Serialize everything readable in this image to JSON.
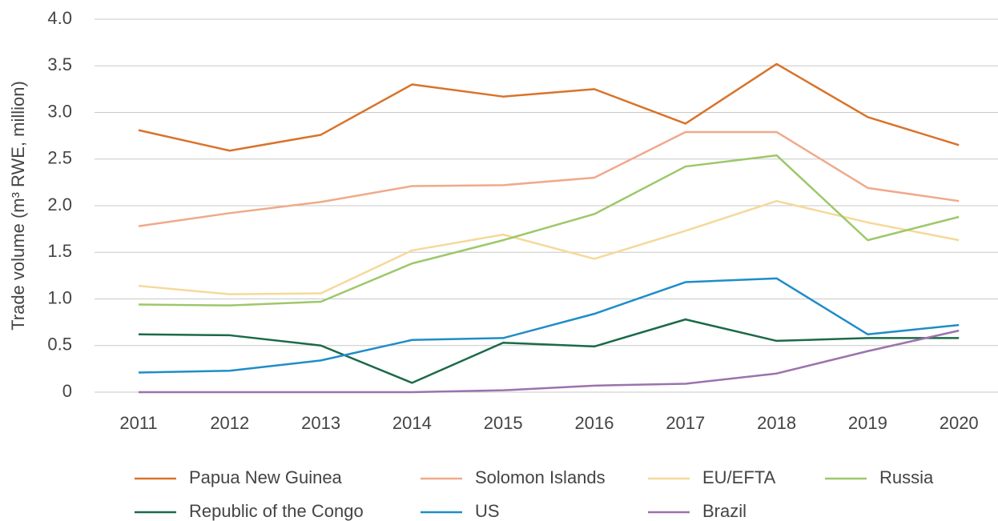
{
  "chart_data": {
    "type": "line",
    "y_label": "Trade volume (m³ RWE, million)",
    "categories": [
      "2011",
      "2012",
      "2013",
      "2014",
      "2015",
      "2016",
      "2017",
      "2018",
      "2019",
      "2020"
    ],
    "series": [
      {
        "name": "Papua New Guinea",
        "color": "#d9732a",
        "values": [
          2.81,
          2.59,
          2.76,
          3.3,
          3.17,
          3.25,
          2.88,
          3.52,
          2.95,
          2.65
        ]
      },
      {
        "name": "Solomon Islands",
        "color": "#f0a98a",
        "values": [
          1.78,
          1.92,
          2.04,
          2.21,
          2.22,
          2.3,
          2.79,
          2.79,
          2.19,
          2.05
        ]
      },
      {
        "name": "EU/EFTA",
        "color": "#f5d99a",
        "values": [
          1.14,
          1.05,
          1.06,
          1.52,
          1.69,
          1.43,
          1.73,
          2.05,
          1.82,
          1.63
        ]
      },
      {
        "name": "Russia",
        "color": "#9dc86a",
        "values": [
          0.94,
          0.93,
          0.97,
          1.38,
          1.63,
          1.91,
          2.42,
          2.54,
          1.63,
          1.88
        ]
      },
      {
        "name": "Republic of the Congo",
        "color": "#1b6a48",
        "values": [
          0.62,
          0.61,
          0.5,
          0.1,
          0.53,
          0.49,
          0.78,
          0.55,
          0.58,
          0.58
        ]
      },
      {
        "name": "US",
        "color": "#1f8dc8",
        "values": [
          0.21,
          0.23,
          0.34,
          0.56,
          0.58,
          0.84,
          1.18,
          1.22,
          0.62,
          0.72
        ]
      },
      {
        "name": "Brazil",
        "color": "#9c72ad",
        "values": [
          0,
          0,
          0,
          0,
          0.02,
          0.07,
          0.09,
          0.2,
          0.44,
          0.66
        ]
      }
    ],
    "ylim": [
      0,
      4
    ],
    "yticks": [
      0,
      0.5,
      {
        "value": 1,
        "label": "1.0"
      },
      1.5,
      {
        "value": 2,
        "label": "2.0"
      },
      2.5,
      {
        "value": 3,
        "label": "3.0"
      },
      3.5,
      {
        "value": 4,
        "label": "4.0"
      }
    ],
    "grid": true,
    "legend": "bottom"
  }
}
